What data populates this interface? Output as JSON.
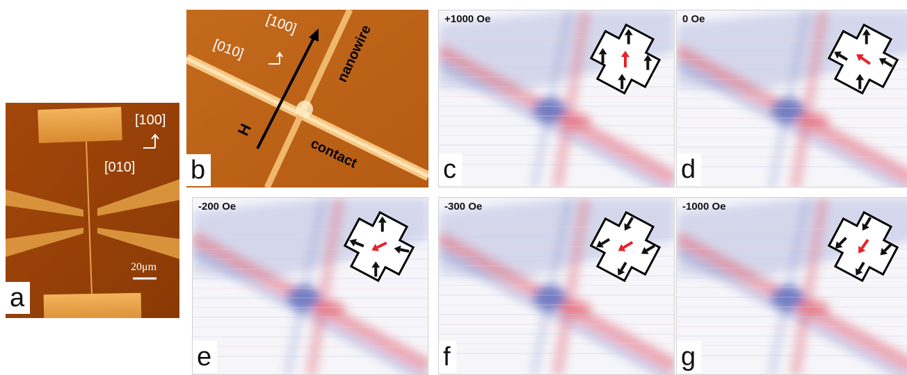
{
  "figure": {
    "panel_a": {
      "letter": "a",
      "dir_100": "[100]",
      "dir_010": "[010]",
      "scale_bar": "20μm"
    },
    "panel_b": {
      "letter": "b",
      "dir_100": "[100]",
      "dir_010": "[010]",
      "field_label": "H",
      "nanowire_label": "nanowire",
      "contact_label": "contact"
    },
    "panels": [
      {
        "letter": "c",
        "field": "+1000 Oe"
      },
      {
        "letter": "d",
        "field": "0 Oe"
      },
      {
        "letter": "e",
        "field": "-200 Oe"
      },
      {
        "letter": "f",
        "field": "-300 Oe"
      },
      {
        "letter": "g",
        "field": "-1000 Oe"
      }
    ]
  },
  "colors": {
    "afm_dark": "#8a3b05",
    "afm_mid": "#c4671a",
    "afm_light": "#f4c27a",
    "mfm_blue": "#3b4fb0",
    "mfm_red": "#e0475a",
    "arrow_red": "#e8202a",
    "arrow_black": "#111111"
  }
}
